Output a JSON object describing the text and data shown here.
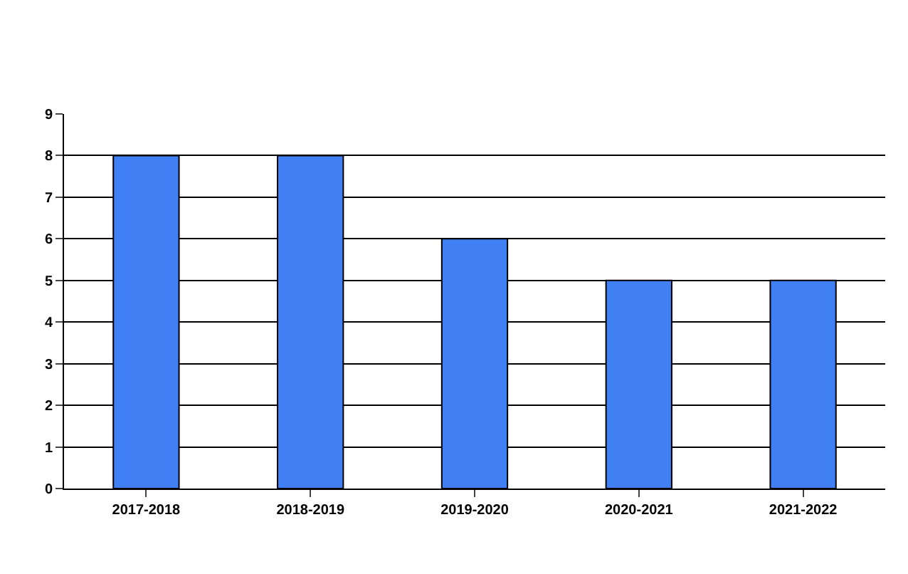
{
  "chart_data": {
    "type": "bar",
    "categories": [
      "2017-2018",
      "2018-2019",
      "2019-2020",
      "2020-2021",
      "2021-2022"
    ],
    "values": [
      8,
      8,
      6,
      5,
      5
    ],
    "color": "#4080f4",
    "ylim": [
      0,
      9
    ],
    "yticks": [
      0,
      1,
      2,
      3,
      4,
      5,
      6,
      7,
      8,
      9
    ],
    "grid": "y"
  }
}
